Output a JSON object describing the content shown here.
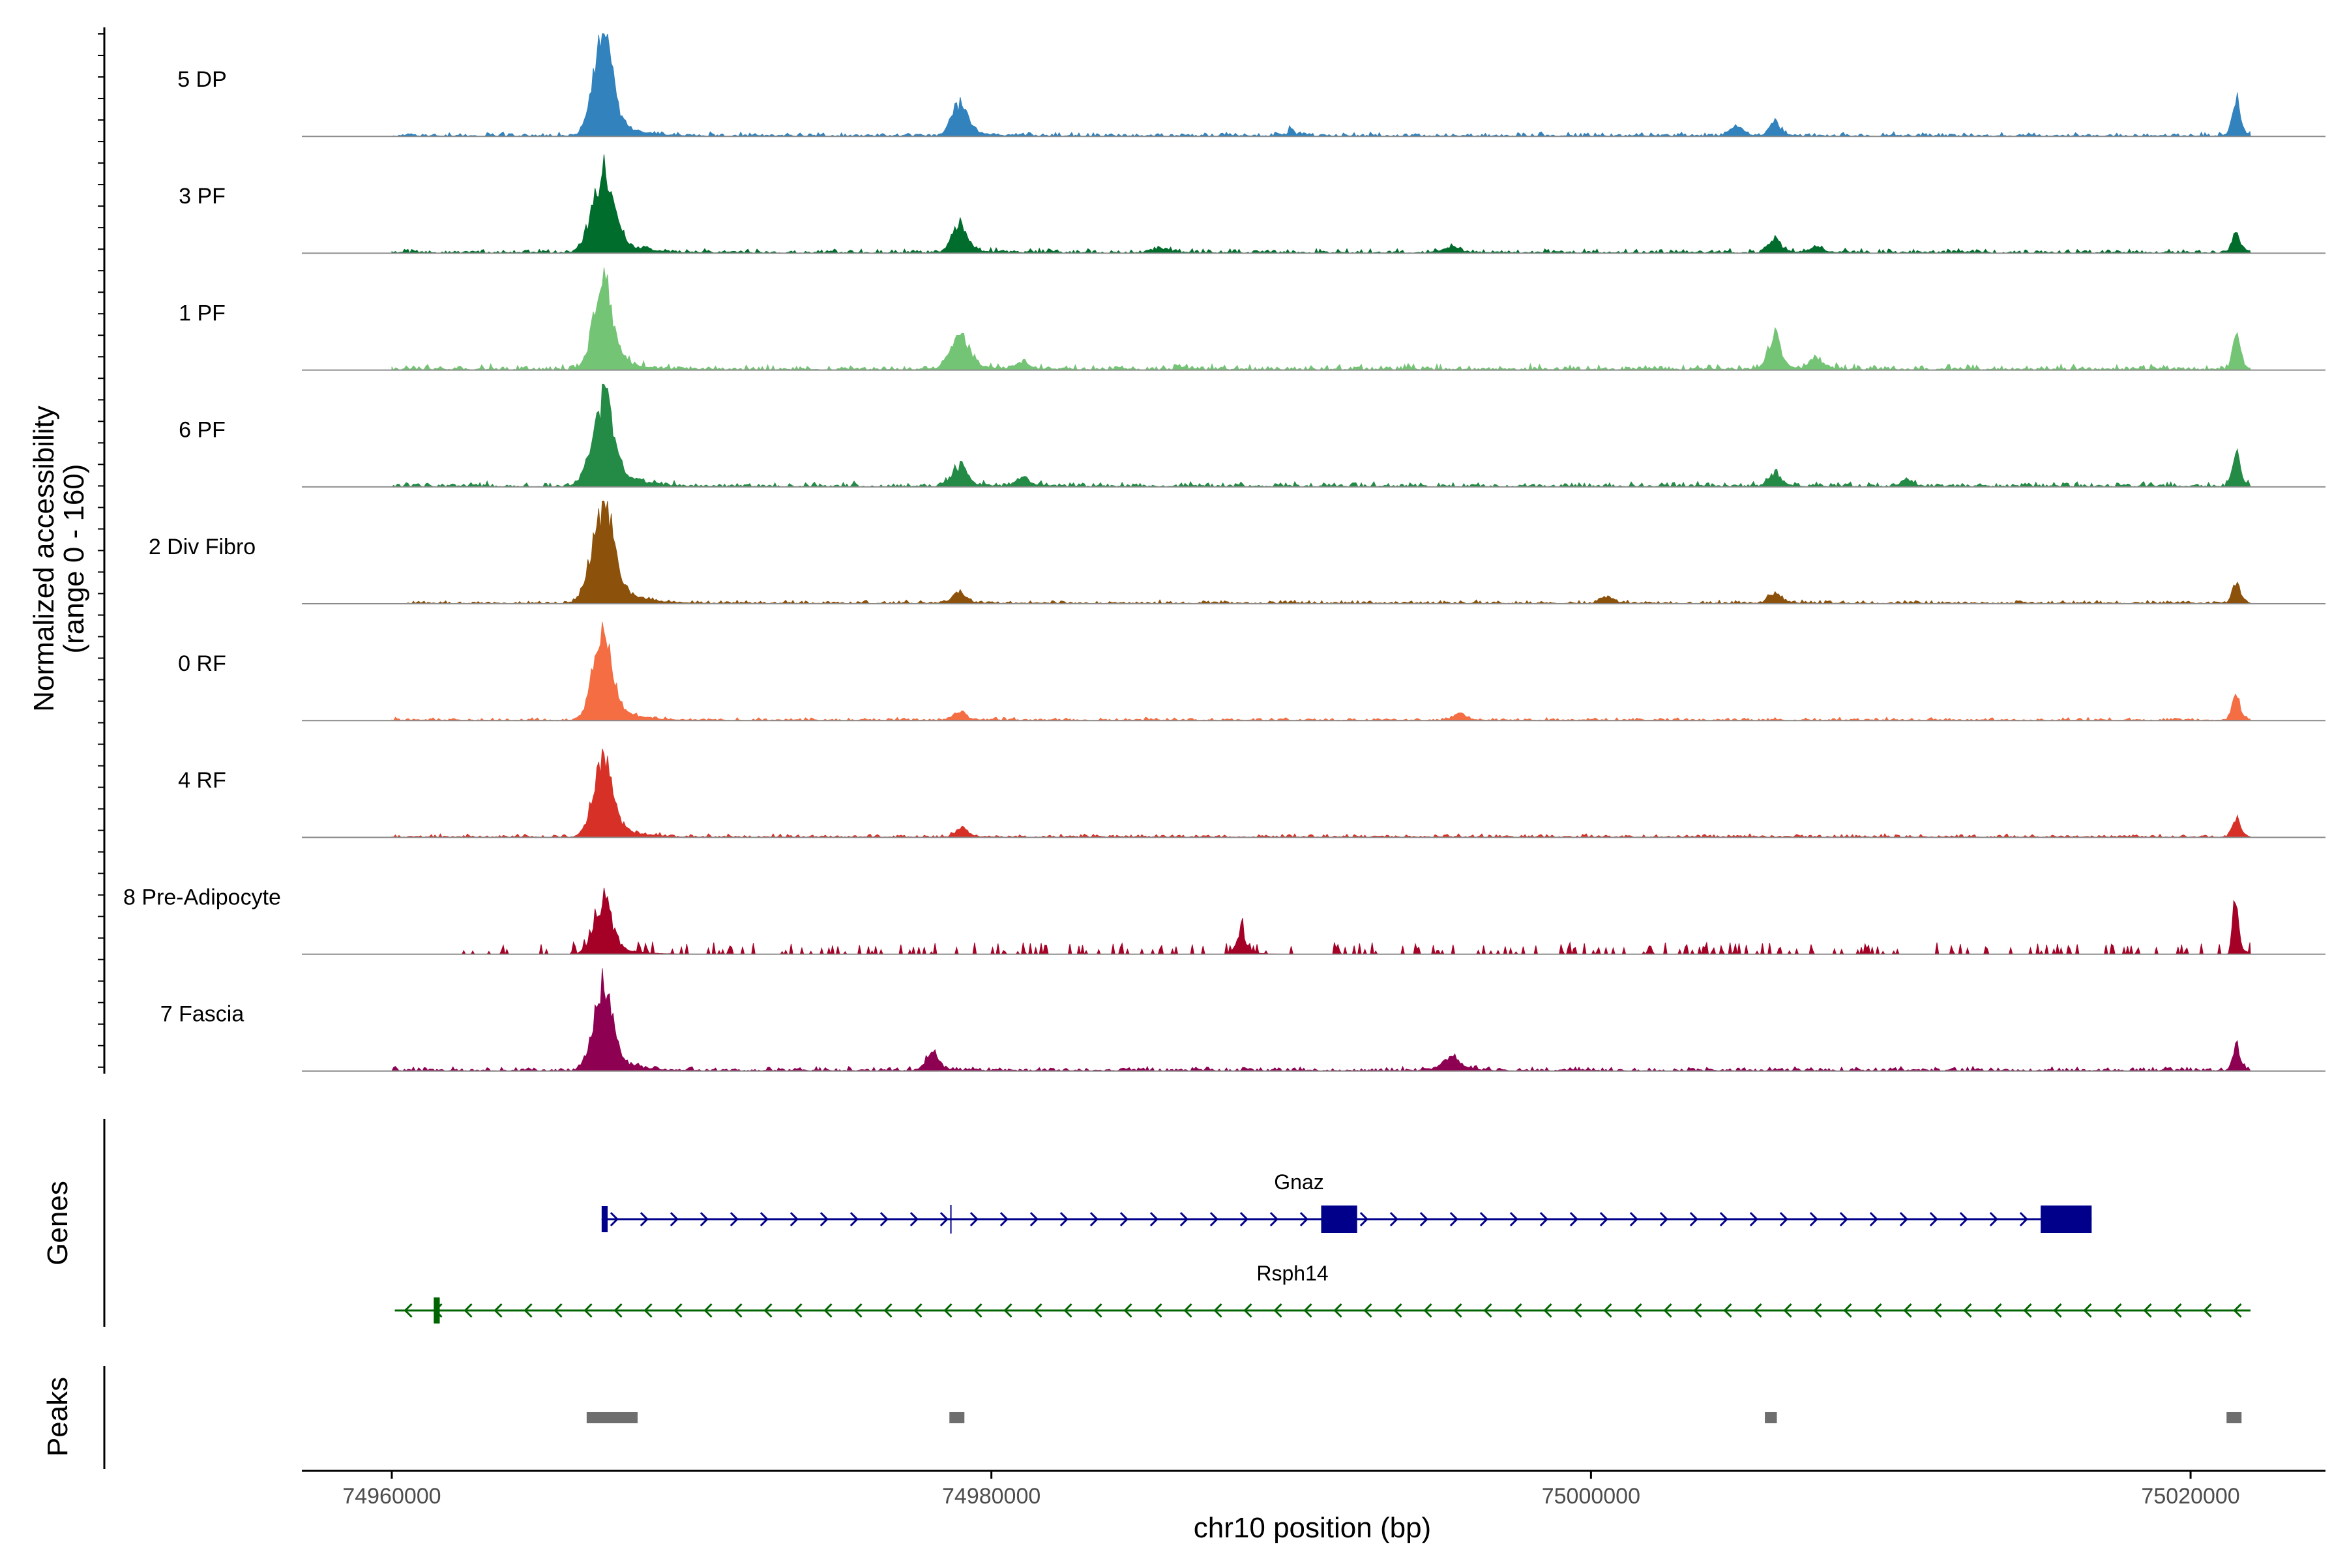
{
  "chart_data": {
    "type": "area",
    "title": "",
    "ylabel_line1": "Normalized accessibility",
    "ylabel_line2": "(range 0 - 160)",
    "ylim": [
      0,
      160
    ],
    "xlabel": "chr10 position (bp)",
    "xlim": [
      74957000,
      75024500
    ],
    "xtick_values": [
      74960000,
      74980000,
      75000000,
      75020000
    ],
    "xtick_labels": [
      "74960000",
      "74980000",
      "75000000",
      "75020000"
    ],
    "region": {
      "start": 74960000,
      "end": 75022000
    },
    "background_noise": 0.06,
    "series": [
      {
        "name": "5 DP",
        "color": "#3182BD",
        "noise": 0.05,
        "noise_start": 74960000,
        "sparse": false,
        "peaks": [
          [
            74967000,
            300,
            1.0
          ],
          [
            74978900,
            250,
            0.32
          ],
          [
            74990000,
            80,
            0.08
          ],
          [
            75004800,
            200,
            0.1
          ],
          [
            75006100,
            150,
            0.16
          ],
          [
            75021500,
            120,
            0.38
          ]
        ]
      },
      {
        "name": "3 PF",
        "color": "#006D2C",
        "noise": 0.05,
        "noise_start": 74960000,
        "sparse": false,
        "peaks": [
          [
            74967000,
            350,
            0.72
          ],
          [
            74978900,
            250,
            0.25
          ],
          [
            74985600,
            300,
            0.04
          ],
          [
            74995300,
            300,
            0.05
          ],
          [
            75006100,
            200,
            0.12
          ],
          [
            75007500,
            200,
            0.06
          ],
          [
            75021500,
            120,
            0.2
          ]
        ]
      },
      {
        "name": "1 PF",
        "color": "#74C476",
        "noise": 0.07,
        "noise_start": 74960000,
        "sparse": false,
        "peaks": [
          [
            74967000,
            300,
            0.85
          ],
          [
            74978900,
            300,
            0.32
          ],
          [
            74981000,
            200,
            0.07
          ],
          [
            75006100,
            200,
            0.3
          ],
          [
            75007500,
            200,
            0.1
          ],
          [
            75021500,
            120,
            0.32
          ]
        ]
      },
      {
        "name": "6 PF",
        "color": "#238B45",
        "noise": 0.06,
        "noise_start": 74960000,
        "sparse": false,
        "peaks": [
          [
            74967000,
            350,
            0.82
          ],
          [
            74978900,
            250,
            0.18
          ],
          [
            74981000,
            200,
            0.08
          ],
          [
            75006100,
            200,
            0.12
          ],
          [
            75010500,
            200,
            0.06
          ],
          [
            75021500,
            120,
            0.3
          ]
        ]
      },
      {
        "name": "2 Div Fibro",
        "color": "#8C510A",
        "noise": 0.04,
        "noise_start": 74960500,
        "sparse": false,
        "peaks": [
          [
            74967000,
            350,
            0.95
          ],
          [
            74978900,
            200,
            0.12
          ],
          [
            75000500,
            200,
            0.06
          ],
          [
            75006100,
            200,
            0.1
          ],
          [
            75021500,
            120,
            0.2
          ]
        ]
      },
      {
        "name": "0 RF",
        "color": "#F46D43",
        "noise": 0.035,
        "noise_start": 74960000,
        "sparse": false,
        "peaks": [
          [
            74967000,
            300,
            0.88
          ],
          [
            74978900,
            200,
            0.08
          ],
          [
            74995600,
            200,
            0.06
          ],
          [
            75021500,
            120,
            0.25
          ]
        ]
      },
      {
        "name": "4 RF",
        "color": "#D73027",
        "noise": 0.04,
        "noise_start": 74960000,
        "sparse": false,
        "peaks": [
          [
            74967000,
            300,
            0.75
          ],
          [
            74979000,
            200,
            0.08
          ],
          [
            75021500,
            120,
            0.2
          ]
        ]
      },
      {
        "name": "8 Pre-Adipocyte",
        "color": "#A50026",
        "noise": 0.12,
        "noise_start": 74962300,
        "sparse": true,
        "peaks": [
          [
            74967000,
            300,
            0.48
          ],
          [
            74988300,
            150,
            0.22
          ],
          [
            75021500,
            80,
            0.6
          ]
        ]
      },
      {
        "name": "7 Fascia",
        "color": "#8E0152",
        "noise": 0.05,
        "noise_start": 74960000,
        "sparse": false,
        "peaks": [
          [
            74967000,
            300,
            0.8
          ],
          [
            74978000,
            200,
            0.18
          ],
          [
            74995300,
            300,
            0.12
          ],
          [
            75021500,
            120,
            0.25
          ]
        ]
      }
    ],
    "genes": [
      {
        "name": "Gnaz",
        "strand": "+",
        "start": 74967000,
        "end": 75016700,
        "color": "#00008B",
        "exons": [
          [
            74967000,
            74967200
          ],
          [
            74978650,
            74978750
          ],
          [
            74991000,
            74992200
          ],
          [
            75015000,
            75016700
          ]
        ]
      },
      {
        "name": "Rsph14",
        "strand": "-",
        "start": 74960100,
        "end": 75022000,
        "color": "#006400",
        "exons": [
          [
            74961400,
            74961600
          ]
        ]
      }
    ],
    "peaks_color": "#6E6E6E",
    "peaks": [
      [
        74966500,
        74968200
      ],
      [
        74978600,
        74979100
      ],
      [
        75005800,
        75006200
      ],
      [
        75021200,
        75021700
      ]
    ]
  },
  "panels": {
    "genes_label": "Genes",
    "peaks_label": "Peaks"
  }
}
